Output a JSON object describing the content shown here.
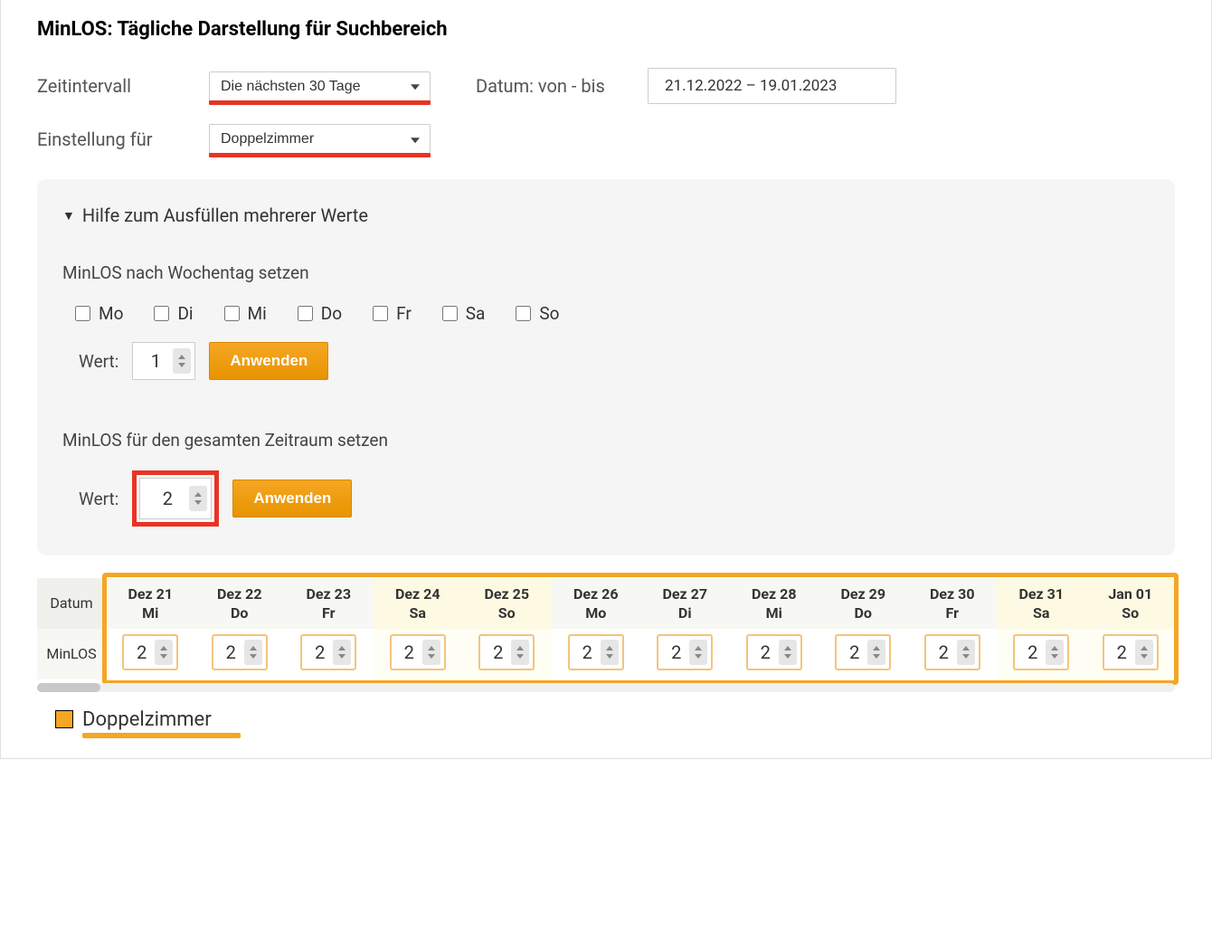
{
  "colors": {
    "highlight_red": "#e93323",
    "highlight_orange": "#f5a623",
    "panel_bg": "#f5f5f5",
    "weekend_bg": "#fdf9e2",
    "cell_border": "#f2c57c",
    "button_bg_top": "#f5a623",
    "button_bg_bottom": "#e89400",
    "text_primary": "#333333",
    "text_secondary": "#555555"
  },
  "title": "MinLOS: Tägliche Darstellung für Suchbereich",
  "controls": {
    "interval_label": "Zeitintervall",
    "interval_value": "Die nächsten 30 Tage",
    "date_label": "Datum: von - bis",
    "date_value": "21.12.2022 – 19.01.2023",
    "setting_label": "Einstellung für",
    "setting_value": "Doppelzimmer"
  },
  "help_panel": {
    "toggle_label": "Hilfe zum Ausfüllen mehrerer Werte",
    "weekday_heading": "MinLOS nach Wochentag setzen",
    "weekdays": [
      "Mo",
      "Di",
      "Mi",
      "Do",
      "Fr",
      "Sa",
      "So"
    ],
    "wert_label": "Wert:",
    "weekday_value": "1",
    "apply_label": "Anwenden",
    "range_heading": "MinLOS für den gesamten Zeitraum setzen",
    "range_value": "2"
  },
  "table": {
    "row_head_date": "Datum",
    "row_head_value": "MinLOS",
    "columns": [
      {
        "top": "Dez 21",
        "bottom": "Mi",
        "weekend": false,
        "value": "2"
      },
      {
        "top": "Dez 22",
        "bottom": "Do",
        "weekend": false,
        "value": "2"
      },
      {
        "top": "Dez 23",
        "bottom": "Fr",
        "weekend": false,
        "value": "2"
      },
      {
        "top": "Dez 24",
        "bottom": "Sa",
        "weekend": true,
        "value": "2"
      },
      {
        "top": "Dez 25",
        "bottom": "So",
        "weekend": true,
        "value": "2"
      },
      {
        "top": "Dez 26",
        "bottom": "Mo",
        "weekend": false,
        "value": "2"
      },
      {
        "top": "Dez 27",
        "bottom": "Di",
        "weekend": false,
        "value": "2"
      },
      {
        "top": "Dez 28",
        "bottom": "Mi",
        "weekend": false,
        "value": "2"
      },
      {
        "top": "Dez 29",
        "bottom": "Do",
        "weekend": false,
        "value": "2"
      },
      {
        "top": "Dez 30",
        "bottom": "Fr",
        "weekend": false,
        "value": "2"
      },
      {
        "top": "Dez 31",
        "bottom": "Sa",
        "weekend": true,
        "value": "2"
      },
      {
        "top": "Jan 01",
        "bottom": "So",
        "weekend": true,
        "value": "2"
      }
    ]
  },
  "legend": {
    "label": "Doppelzimmer"
  }
}
